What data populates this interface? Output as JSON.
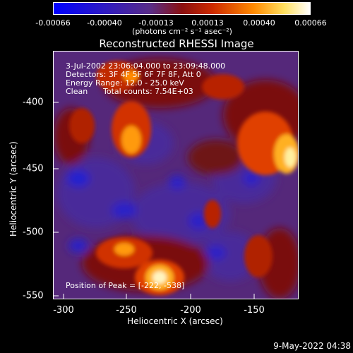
{
  "colorbar": {
    "tick_labels": [
      "-0.00066",
      "-0.00040",
      "-0.00013",
      "0.00013",
      "0.00040",
      "0.00066"
    ],
    "units": "(photons cm⁻² s⁻¹ asec⁻²)",
    "colors": [
      "#0000ff",
      "#3a12b8",
      "#5a2d86",
      "#8a1010",
      "#cc3000",
      "#ff8a00",
      "#ffe060",
      "#ffffff"
    ]
  },
  "title": "Reconstructed RHESSI Image",
  "info": {
    "time_range": "3-Jul-2002 23:06:04.000 to 23:09:48.000",
    "detectors": "Detectors: 3F 4F 5F 6F 7F 8F, Att 0",
    "energy": "Energy Range: 12.0 - 25.0 keV",
    "method": "Clean",
    "counts": "Total counts: 7.54E+03",
    "peak": "Position of Peak = [-222, -538]"
  },
  "axes": {
    "xlabel": "Heliocentric X (arcsec)",
    "ylabel": "Heliocentric Y (arcsec)",
    "xticks": [
      "-300",
      "-250",
      "-200",
      "-150"
    ],
    "yticks": [
      "-400",
      "-450",
      "-500",
      "-550"
    ]
  },
  "timestamp": "9-May-2022 04:38"
}
